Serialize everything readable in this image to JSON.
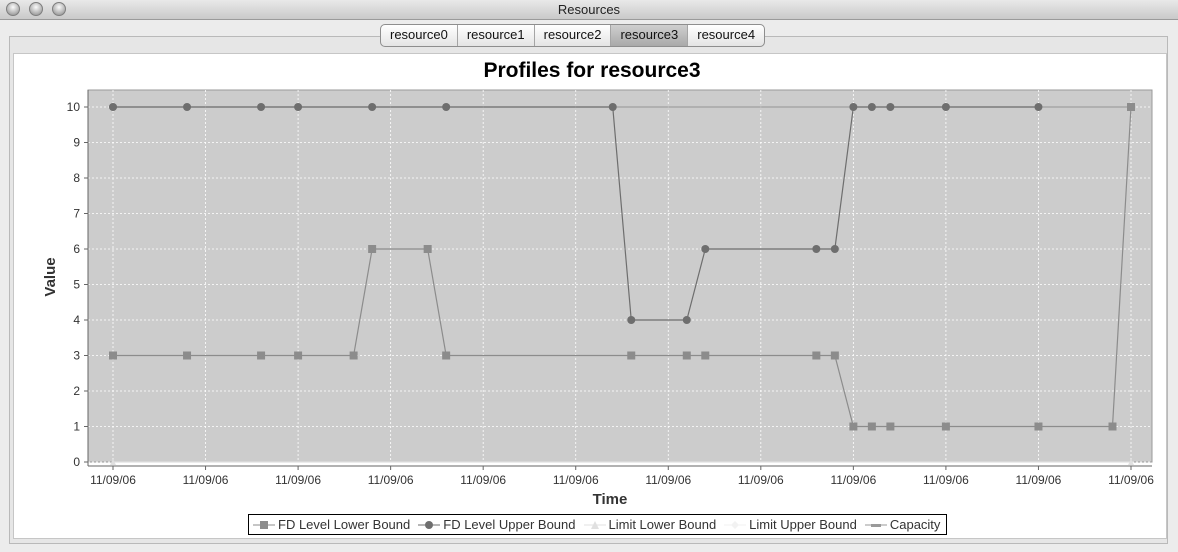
{
  "window": {
    "title": "Resources"
  },
  "tabs": [
    {
      "label": "resource0",
      "active": false
    },
    {
      "label": "resource1",
      "active": false
    },
    {
      "label": "resource2",
      "active": false
    },
    {
      "label": "resource3",
      "active": true
    },
    {
      "label": "resource4",
      "active": false
    }
  ],
  "chart_data": {
    "type": "line",
    "title": "Profiles for resource3",
    "xlabel": "Time",
    "ylabel": "Value",
    "ylim": [
      0,
      10
    ],
    "yticks": [
      0,
      1,
      2,
      3,
      4,
      5,
      6,
      7,
      8,
      9,
      10
    ],
    "xtick_labels": [
      "11/09/06",
      "11/09/06",
      "11/09/06",
      "11/09/06",
      "11/09/06",
      "11/09/06",
      "11/09/06",
      "11/09/06",
      "11/09/06",
      "11/09/06",
      "11/09/06",
      "11/09/06"
    ],
    "grid": true,
    "legend_placement": "bottom",
    "series": [
      {
        "name": "FD Level Lower Bound",
        "marker": "square",
        "x": [
          0,
          4,
          8,
          10,
          13,
          14,
          17,
          18,
          28,
          31,
          32,
          38,
          39,
          40,
          41,
          42,
          45,
          50,
          54,
          55
        ],
        "values": [
          3,
          3,
          3,
          3,
          3,
          6,
          6,
          3,
          3,
          3,
          3,
          3,
          3,
          1,
          1,
          1,
          1,
          1,
          1,
          10
        ]
      },
      {
        "name": "FD Level Upper Bound",
        "marker": "circle",
        "x": [
          0,
          4,
          8,
          10,
          14,
          18,
          27,
          28,
          31,
          32,
          38,
          39,
          40,
          41,
          42,
          45,
          50
        ],
        "values": [
          10,
          10,
          10,
          10,
          10,
          10,
          10,
          4,
          4,
          6,
          6,
          6,
          10,
          10,
          10,
          10,
          10
        ]
      },
      {
        "name": "Limit Lower Bound",
        "marker": "triangle",
        "x": [
          0,
          55
        ],
        "values": [
          0,
          0
        ]
      },
      {
        "name": "Limit Upper Bound",
        "marker": "diamond",
        "x": [
          0,
          55
        ],
        "values": [
          10,
          10
        ]
      },
      {
        "name": "Capacity",
        "marker": "dash",
        "x": [
          0,
          55
        ],
        "values": [
          10,
          10
        ]
      }
    ],
    "colors": {
      "plot_bg": "#cccccc",
      "lower": "#8c8c8c",
      "upper": "#6e6e6e",
      "limit_lower": "#e0e0e0",
      "limit_upper": "#f2f2f2",
      "capacity": "#9a9a9a"
    }
  }
}
